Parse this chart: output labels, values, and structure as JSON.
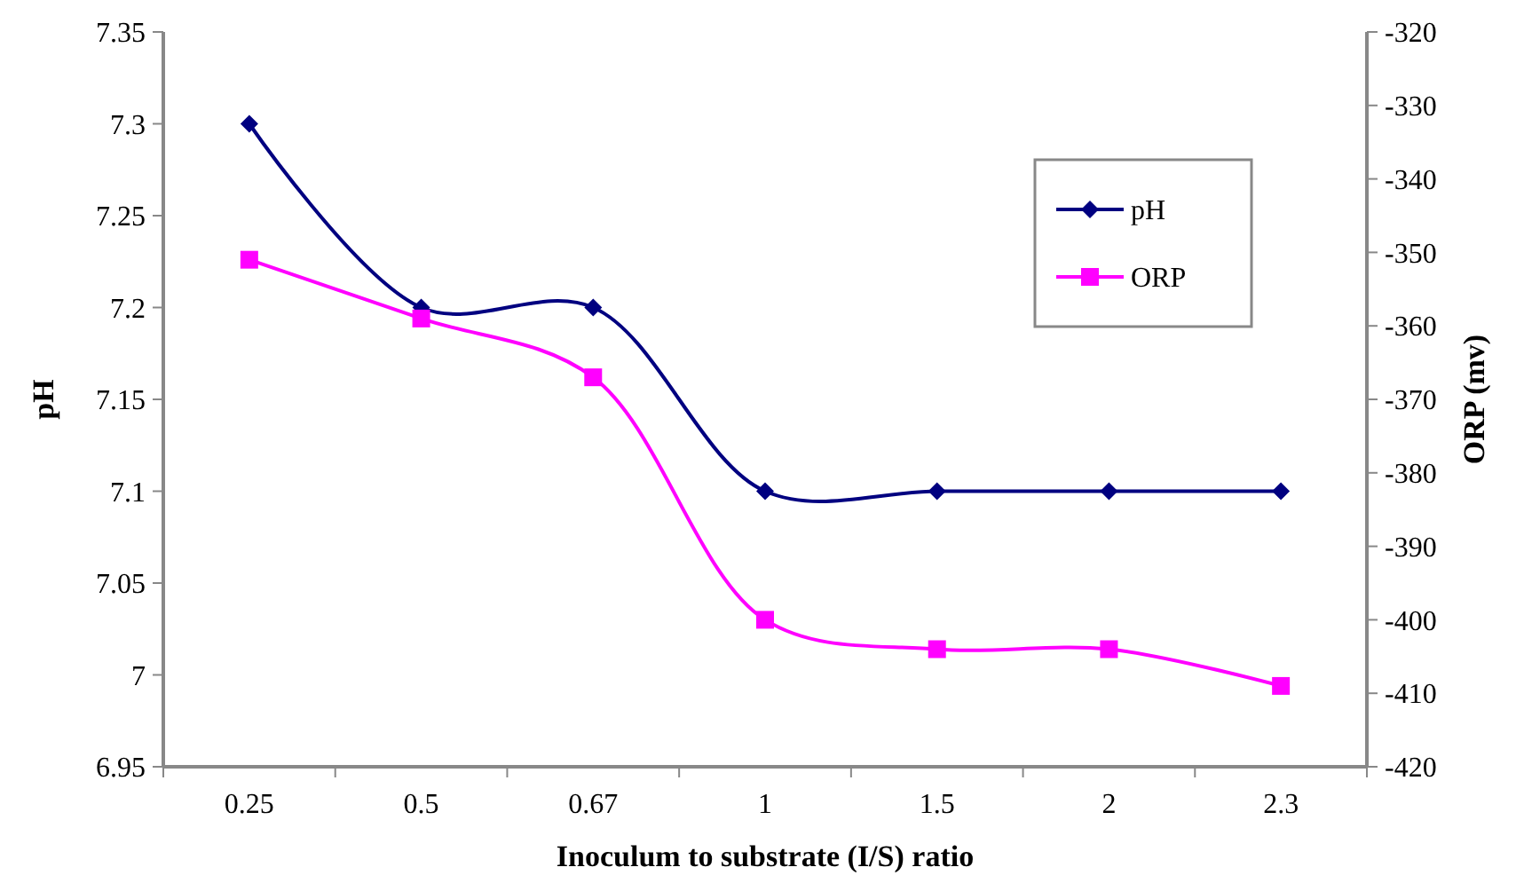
{
  "chart_data": {
    "type": "line",
    "xlabel": "Inoculum to substrate (I/S) ratio",
    "ylabel": "pH",
    "y2label": "ORP (mv)",
    "categories": [
      "0.25",
      "0.5",
      "0.67",
      "1",
      "1.5",
      "2",
      "2.3"
    ],
    "series": [
      {
        "name": "pH",
        "color": "#000080",
        "marker": "diamond",
        "values": [
          7.3,
          7.2,
          7.2,
          7.1,
          7.1,
          7.1,
          7.1
        ]
      },
      {
        "name": "ORP",
        "color": "#ff00ff",
        "marker": "square",
        "axis": "y2",
        "values": [
          -351,
          -359,
          -367,
          -400,
          -404,
          -404,
          -409
        ]
      }
    ],
    "ylim": [
      6.95,
      7.35
    ],
    "yticks": [
      6.95,
      7,
      7.05,
      7.1,
      7.15,
      7.2,
      7.25,
      7.3,
      7.35
    ],
    "y2lim": [
      -420,
      -320
    ],
    "y2ticks": [
      -420,
      -410,
      -400,
      -390,
      -380,
      -370,
      -360,
      -350,
      -340,
      -330,
      -320
    ],
    "legend": "top right",
    "grid": false
  }
}
